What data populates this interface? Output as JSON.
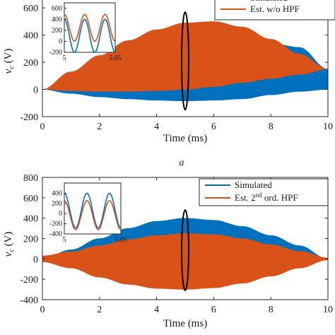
{
  "colors": {
    "simulated": "#0072BD",
    "estimated": "#D95319",
    "axis": "#262626",
    "marker": "#000000"
  },
  "chart_data": [
    {
      "type": "area",
      "panel_label": "a",
      "xlabel": "Time (ms)",
      "ylabel": "v",
      "ylabel_sub": "c",
      "ylabel_unit": " (V)",
      "xlim": [
        0,
        10
      ],
      "ylim": [
        -200,
        700
      ],
      "xticks": [
        0,
        2,
        4,
        6,
        8,
        10
      ],
      "yticks": [
        -200,
        0,
        200,
        400,
        600
      ],
      "ytick_labels": [
        "-200",
        "0",
        "200",
        "400",
        "600"
      ],
      "legend": {
        "location": "top-right",
        "entries": [
          "Simulated",
          "Est. w/o HPF"
        ]
      },
      "series": [
        {
          "name": "Simulated",
          "x": [
            0,
            1,
            2,
            3,
            4,
            5,
            6,
            7,
            8,
            9,
            10
          ],
          "upper": [
            0,
            45,
            80,
            115,
            150,
            190,
            240,
            300,
            340,
            310,
            150
          ],
          "lower": [
            0,
            -30,
            -55,
            -70,
            -80,
            -85,
            -80,
            -70,
            -40,
            -15,
            0
          ]
        },
        {
          "name": "Est. w/o HPF",
          "x": [
            0,
            1,
            2,
            3,
            4,
            5,
            6,
            7,
            8,
            9,
            10
          ],
          "upper": [
            0,
            130,
            250,
            360,
            440,
            490,
            500,
            460,
            370,
            260,
            150
          ],
          "lower": [
            0,
            -10,
            -15,
            -15,
            -10,
            0,
            20,
            50,
            80,
            110,
            150
          ]
        }
      ],
      "inset": {
        "xlim": [
          5,
          5.05
        ],
        "ylim": [
          -200,
          700
        ],
        "xticks": [
          5,
          5.05
        ],
        "xtick_labels": [
          "5",
          "5.05"
        ],
        "yticks": [
          -200,
          0,
          200,
          400,
          600
        ],
        "ytick_labels": [
          "-200",
          "0",
          "200",
          "400",
          "600"
        ],
        "series": [
          {
            "name": "Simulated",
            "offset": 100,
            "amplitude": 300,
            "period": 0.02,
            "phase": 0.0
          },
          {
            "name": "Est. w/o HPF",
            "offset": 245,
            "amplitude": 245,
            "period": 0.02,
            "phase": 0.0
          }
        ]
      },
      "marker": {
        "type": "ellipse",
        "x": 5,
        "y_range": [
          -150,
          570
        ]
      }
    },
    {
      "type": "area",
      "panel_label": "",
      "xlabel": "Time (ms)",
      "ylabel": "v",
      "ylabel_sub": "c",
      "ylabel_unit": " (V)",
      "xlim": [
        0,
        10
      ],
      "ylim": [
        -400,
        800
      ],
      "xticks": [
        0,
        2,
        4,
        6,
        8,
        10
      ],
      "yticks": [
        -400,
        -200,
        0,
        200,
        400,
        600,
        800
      ],
      "ytick_labels": [
        "-400",
        "-200",
        "0",
        "200",
        "400",
        "600",
        "800"
      ],
      "legend": {
        "location": "top-right",
        "entries": [
          "Simulated",
          "Est. 2nd ord. HPF"
        ]
      },
      "series": [
        {
          "name": "Simulated",
          "x": [
            0,
            1,
            2,
            3,
            4,
            5,
            6,
            7,
            8,
            9,
            10
          ],
          "upper": [
            0,
            90,
            200,
            300,
            370,
            400,
            380,
            320,
            230,
            130,
            0
          ],
          "lower": [
            0,
            -60,
            -140,
            -210,
            -260,
            -280,
            -270,
            -230,
            -165,
            -90,
            0
          ]
        },
        {
          "name": "Est. 2nd ord. HPF",
          "x": [
            0,
            1,
            2,
            3,
            4,
            5,
            6,
            7,
            8,
            9,
            10
          ],
          "upper": [
            30,
            70,
            130,
            190,
            230,
            250,
            240,
            200,
            140,
            75,
            10
          ],
          "lower": [
            -30,
            -90,
            -180,
            -250,
            -290,
            -300,
            -285,
            -240,
            -170,
            -90,
            -10
          ]
        }
      ],
      "inset": {
        "xlim": [
          5,
          5.05
        ],
        "ylim": [
          -400,
          600
        ],
        "xticks": [
          5,
          5.05
        ],
        "xtick_labels": [
          "5",
          "5.05"
        ],
        "yticks": [
          -400,
          -200,
          0,
          200,
          400
        ],
        "ytick_labels": [
          "-400",
          "-200",
          "0",
          "200",
          "400"
        ],
        "series": [
          {
            "name": "Simulated",
            "offset": 60,
            "amplitude": 340,
            "period": 0.02,
            "phase": 0.0
          },
          {
            "name": "Est. 2nd ord. HPF",
            "offset": -30,
            "amplitude": 285,
            "period": 0.02,
            "phase": 0.0
          }
        ]
      },
      "marker": {
        "type": "ellipse",
        "x": 5,
        "y_range": [
          -310,
          480
        ]
      }
    }
  ]
}
